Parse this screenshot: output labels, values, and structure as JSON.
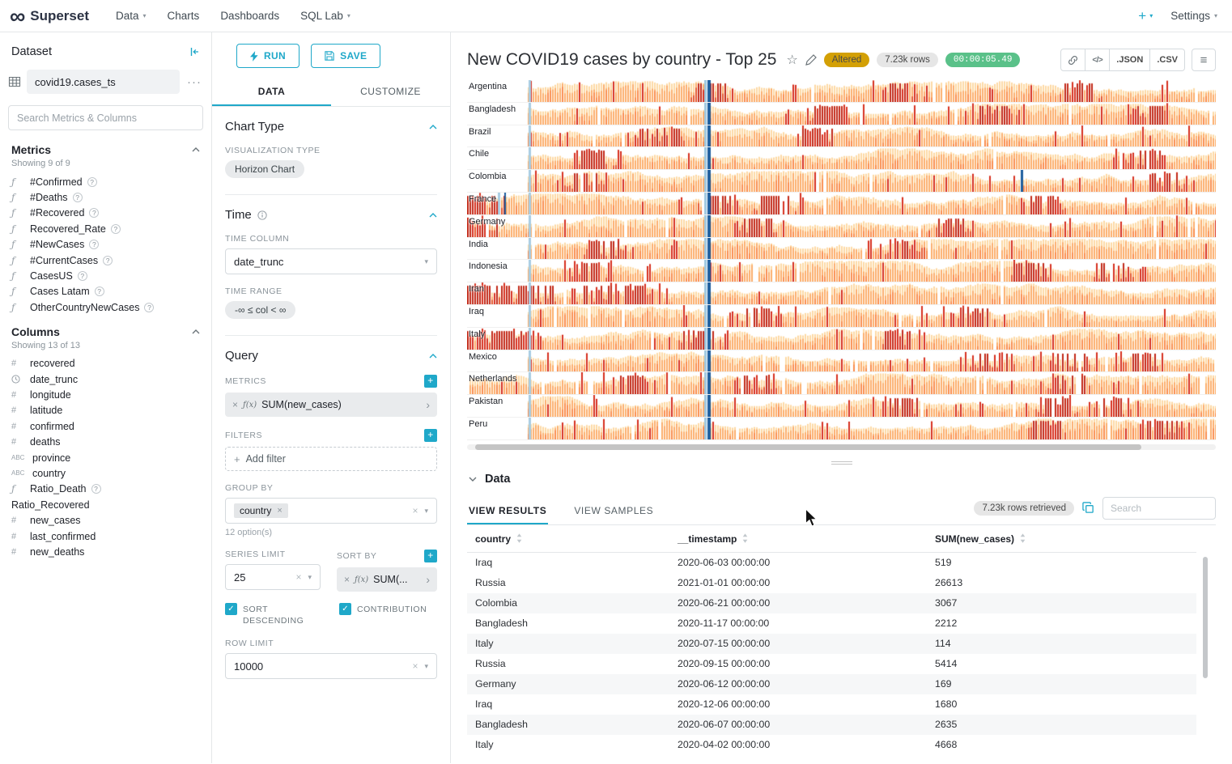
{
  "colors": {
    "primary": "#1FA8C9",
    "altered_badge_bg": "#D3A005",
    "timer_badge_bg": "#5AC189"
  },
  "navbar": {
    "brand": "Superset",
    "items": [
      {
        "label": "Data",
        "dropdown": true
      },
      {
        "label": "Charts",
        "dropdown": false
      },
      {
        "label": "Dashboards",
        "dropdown": false
      },
      {
        "label": "SQL Lab",
        "dropdown": true
      }
    ],
    "plus_label": "+",
    "settings_label": "Settings"
  },
  "dataset_panel": {
    "title": "Dataset",
    "dataset_name": "covid19.cases_ts",
    "more_label": "···",
    "search_placeholder": "Search Metrics & Columns",
    "metrics": {
      "title": "Metrics",
      "showing": "Showing 9 of 9",
      "items": [
        {
          "name": "#Confirmed",
          "type": "function",
          "help": true
        },
        {
          "name": "#Deaths",
          "type": "function",
          "help": true
        },
        {
          "name": "#Recovered",
          "type": "function",
          "help": true
        },
        {
          "name": "Recovered_Rate",
          "type": "function",
          "help": true
        },
        {
          "name": "#NewCases",
          "type": "function",
          "help": true
        },
        {
          "name": "#CurrentCases",
          "type": "function",
          "help": true
        },
        {
          "name": "CasesUS",
          "type": "function",
          "help": true
        },
        {
          "name": "Cases Latam",
          "type": "function",
          "help": true
        },
        {
          "name": "OtherCountryNewCases",
          "type": "function",
          "help": true
        }
      ]
    },
    "columns": {
      "title": "Columns",
      "showing": "Showing 13 of 13",
      "items": [
        {
          "name": "recovered",
          "type": "number",
          "help": false
        },
        {
          "name": "date_trunc",
          "type": "time",
          "help": false
        },
        {
          "name": "longitude",
          "type": "number",
          "help": false
        },
        {
          "name": "latitude",
          "type": "number",
          "help": false
        },
        {
          "name": "confirmed",
          "type": "number",
          "help": false
        },
        {
          "name": "deaths",
          "type": "number",
          "help": false
        },
        {
          "name": "province",
          "type": "text",
          "help": false
        },
        {
          "name": "country",
          "type": "text",
          "help": false
        },
        {
          "name": "Ratio_Death",
          "type": "function",
          "help": true
        },
        {
          "name": "Ratio_Recovered",
          "type": "none",
          "help": false
        },
        {
          "name": "new_cases",
          "type": "number",
          "help": false
        },
        {
          "name": "last_confirmed",
          "type": "number",
          "help": false
        },
        {
          "name": "new_deaths",
          "type": "number",
          "help": false
        }
      ]
    }
  },
  "control_panel": {
    "run_label": "RUN",
    "save_label": "SAVE",
    "tabs": [
      {
        "label": "DATA",
        "active": true
      },
      {
        "label": "CUSTOMIZE",
        "active": false
      }
    ],
    "chart_type_section": "Chart Type",
    "visualization_type_label": "VISUALIZATION TYPE",
    "visualization_type": "Horizon Chart",
    "time_section": "Time",
    "time_column_label": "TIME COLUMN",
    "time_column": "date_trunc",
    "time_range_label": "TIME RANGE",
    "time_range": "-∞ ≤ col < ∞",
    "query_section": "Query",
    "metrics_label": "METRICS",
    "metric_fx": "ƒ(x)",
    "metric_value": "SUM(new_cases)",
    "filters_label": "FILTERS",
    "add_filter_label": "Add filter",
    "group_by_label": "GROUP BY",
    "group_by_value": "country",
    "group_by_hint": "12 option(s)",
    "series_limit_label": "SERIES LIMIT",
    "series_limit_value": "25",
    "sort_by_label": "SORT BY",
    "sort_by_fx": "ƒ(x)",
    "sort_by_value": "SUM(...",
    "sort_descending_label": "SORT DESCENDING",
    "contribution_label": "CONTRIBUTION",
    "row_limit_label": "ROW LIMIT",
    "row_limit_value": "10000"
  },
  "chart_header": {
    "title": "New COVID19 cases by country - Top 25",
    "altered_badge": "Altered",
    "rows_badge": "7.23k rows",
    "timer_badge": "00:00:05.49",
    "json_button": ".JSON",
    "csv_button": ".CSV"
  },
  "chart": {
    "type": "horizon",
    "countries": [
      "Argentina",
      "Bangladesh",
      "Brazil",
      "Chile",
      "Colombia",
      "France",
      "Germany",
      "India",
      "Indonesia",
      "Iran",
      "Iraq",
      "Italy",
      "Mexico",
      "Netherlands",
      "Pakistan",
      "Peru"
    ]
  },
  "results_panel": {
    "title": "Data",
    "tabs": [
      {
        "label": "VIEW RESULTS",
        "active": true
      },
      {
        "label": "VIEW SAMPLES",
        "active": false
      }
    ],
    "rows_retrieved_badge": "7.23k rows retrieved",
    "search_placeholder": "Search",
    "columns": [
      "country",
      "__timestamp",
      "SUM(new_cases)"
    ],
    "rows": [
      {
        "country": "Iraq",
        "timestamp": "2020-06-03 00:00:00",
        "value": "519"
      },
      {
        "country": "Russia",
        "timestamp": "2021-01-01 00:00:00",
        "value": "26613"
      },
      {
        "country": "Colombia",
        "timestamp": "2020-06-21 00:00:00",
        "value": "3067"
      },
      {
        "country": "Bangladesh",
        "timestamp": "2020-11-17 00:00:00",
        "value": "2212"
      },
      {
        "country": "Italy",
        "timestamp": "2020-07-15 00:00:00",
        "value": "114"
      },
      {
        "country": "Russia",
        "timestamp": "2020-09-15 00:00:00",
        "value": "5414"
      },
      {
        "country": "Germany",
        "timestamp": "2020-06-12 00:00:00",
        "value": "169"
      },
      {
        "country": "Iraq",
        "timestamp": "2020-12-06 00:00:00",
        "value": "1680"
      },
      {
        "country": "Bangladesh",
        "timestamp": "2020-06-07 00:00:00",
        "value": "2635"
      },
      {
        "country": "Italy",
        "timestamp": "2020-04-02 00:00:00",
        "value": "4668"
      }
    ]
  }
}
